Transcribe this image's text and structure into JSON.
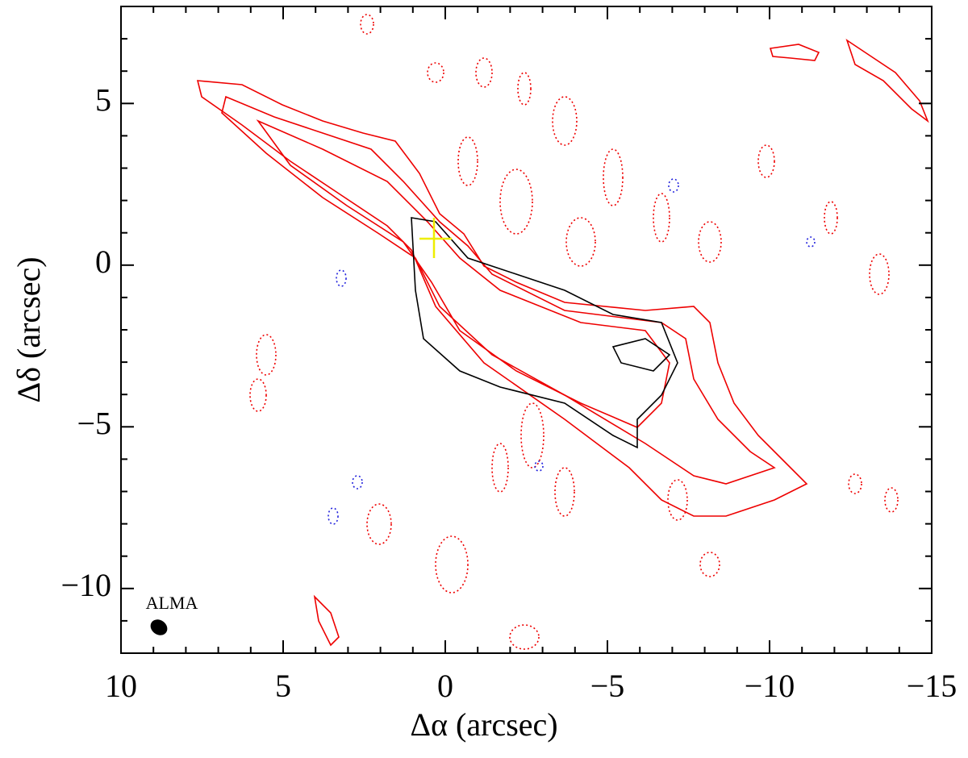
{
  "chart_data": {
    "type": "contour",
    "x_label": "Δα (arcsec)",
    "y_label": "Δδ (arcsec)",
    "annotation": "ALMA",
    "xlim": [
      10,
      -15
    ],
    "ylim": [
      -12,
      8
    ],
    "xticks": [
      10,
      5,
      0,
      {
        "value": -5,
        "label": "−5"
      },
      {
        "value": -10,
        "label": "−10"
      },
      {
        "value": -15,
        "label": "−15"
      }
    ],
    "yticks": [
      {
        "value": -10,
        "label": "−10"
      },
      {
        "value": -5,
        "label": "−5"
      },
      0,
      5
    ]
  }
}
